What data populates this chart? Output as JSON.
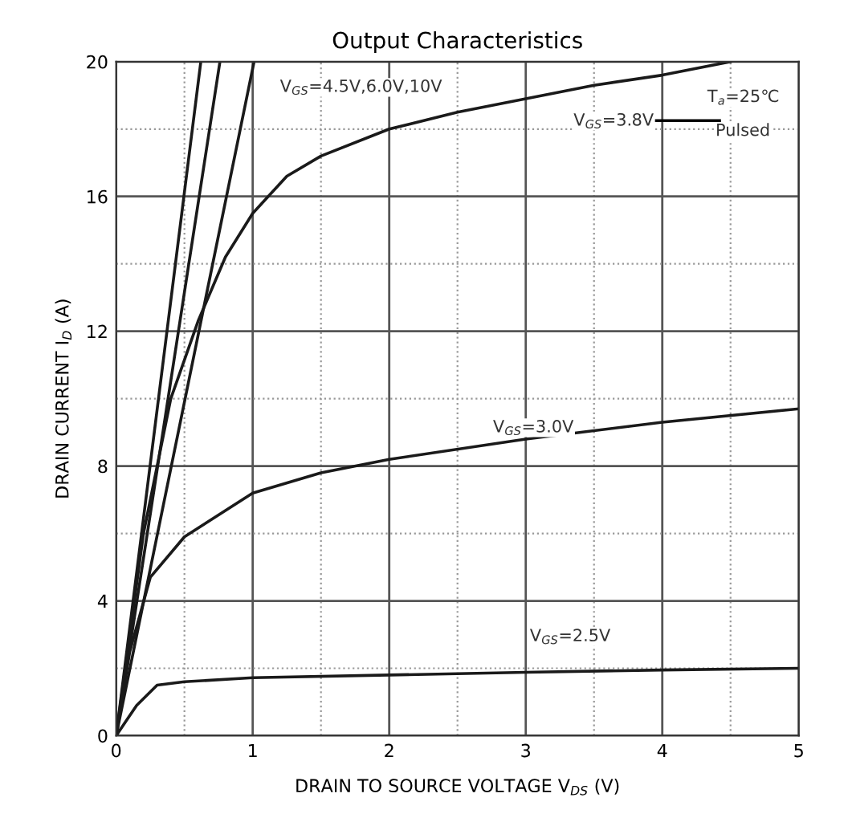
{
  "chart_data": {
    "type": "line",
    "title": "Output Characteristics",
    "xlabel": "DRAIN TO SOURCE VOLTAGE V$_{DS}$ (V)",
    "ylabel": "DRAIN CURRENT I$_{D}$ (A)",
    "xlim": [
      0,
      5
    ],
    "ylim": [
      0,
      20
    ],
    "xticks": [
      0,
      {
        "value": 0.5,
        "label": null
      },
      1,
      {
        "value": 1.5,
        "label": null
      },
      2,
      {
        "value": 2.5,
        "label": null
      },
      3,
      {
        "value": 3.5,
        "label": null
      },
      4,
      {
        "value": 4.5,
        "label": null
      },
      5
    ],
    "yticks": [
      0,
      {
        "value": 2,
        "label": null
      },
      4,
      {
        "value": 6,
        "label": null
      },
      8,
      {
        "value": 10,
        "label": null
      },
      12,
      {
        "value": 14,
        "label": null
      },
      16,
      {
        "value": 18,
        "label": null
      },
      20
    ],
    "grid": true,
    "marker": "none",
    "line_style": "solid",
    "series": [
      {
        "color": "#1a1a1a",
        "x": [
          0,
          0.62
        ],
        "values": [
          0,
          20
        ]
      },
      {
        "color": "#1a1a1a",
        "x": [
          0,
          0.76
        ],
        "values": [
          0,
          20
        ]
      },
      {
        "color": "#1a1a1a",
        "x": [
          0,
          1.01
        ],
        "values": [
          0,
          20
        ]
      },
      {
        "color": "#1a1a1a",
        "x": [
          0,
          0.1,
          0.2,
          0.4,
          0.6,
          0.8,
          1,
          1.25,
          1.5,
          2,
          2.5,
          3,
          3.5,
          4,
          4.5
        ],
        "values": [
          0,
          3,
          6,
          10,
          12.3,
          14.2,
          15.5,
          16.6,
          17.2,
          18,
          18.5,
          18.9,
          19.3,
          19.6,
          20
        ]
      },
      {
        "color": "#1a1a1a",
        "x": [
          0,
          0.1,
          0.25,
          0.5,
          1,
          1.5,
          2,
          3,
          4,
          5
        ],
        "values": [
          0,
          2.5,
          4.7,
          5.9,
          7.2,
          7.8,
          8.2,
          8.8,
          9.3,
          9.7
        ]
      },
      {
        "color": "#1a1a1a",
        "x": [
          0,
          0.1,
          0.15,
          0.3,
          0.5,
          1,
          2,
          3,
          4,
          5
        ],
        "values": [
          0,
          0.6,
          0.9,
          1.5,
          1.6,
          1.72,
          1.8,
          1.88,
          1.95,
          2.0
        ]
      }
    ],
    "annotations": [
      "V$_{GS}$=4.5V,6.0V,10V",
      "V$_{GS}$=3.8V",
      "V$_{GS}$=3.0V",
      "V$_{GS}$=2.5V",
      "T$_{a}$=25℃",
      "Pulsed"
    ]
  }
}
